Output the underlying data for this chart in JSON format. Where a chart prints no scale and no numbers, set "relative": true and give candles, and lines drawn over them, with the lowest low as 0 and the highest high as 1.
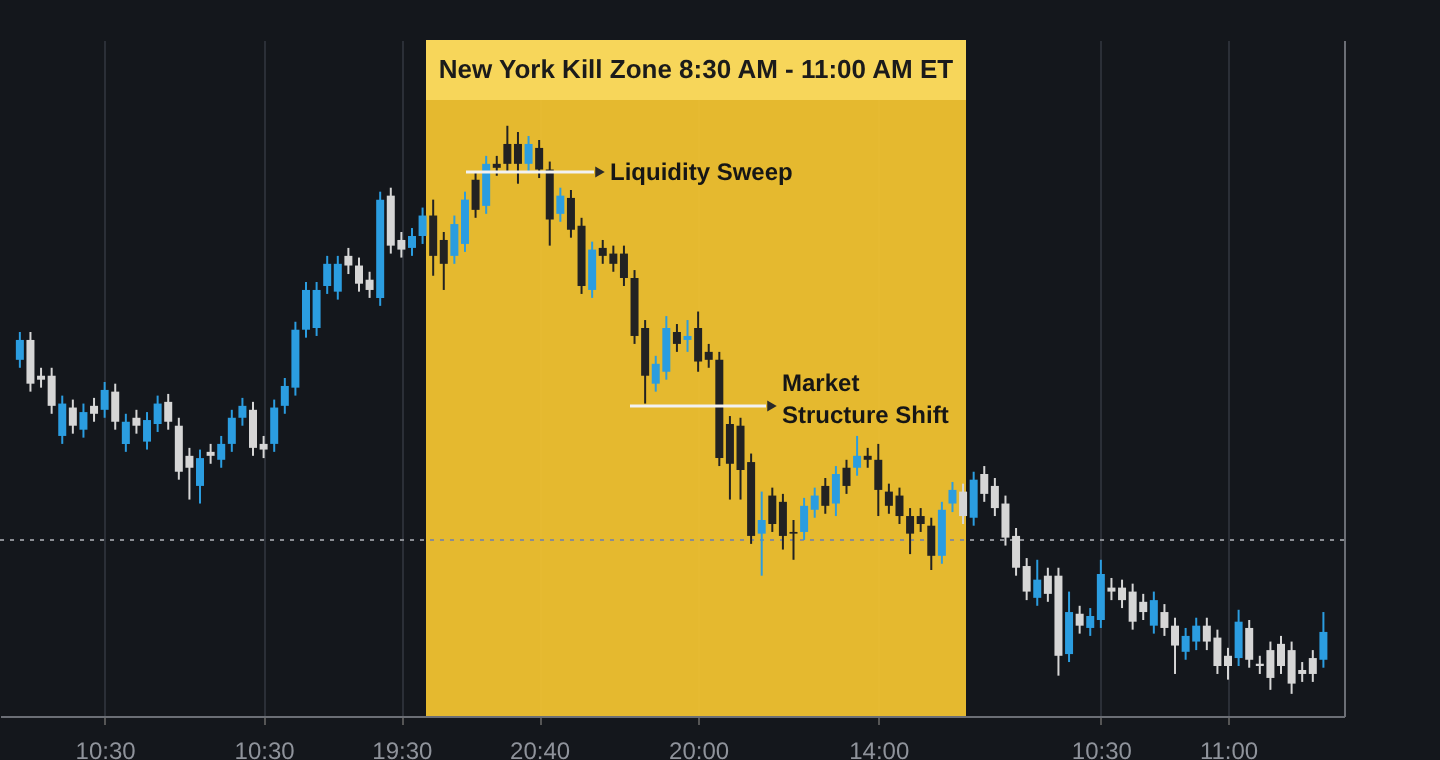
{
  "chart_data": {
    "type": "candlestick",
    "relative": true,
    "categories": [
      null,
      null,
      null,
      null,
      null,
      null,
      null,
      null,
      "10:30",
      null,
      null,
      null,
      null,
      null,
      null,
      null,
      null,
      null,
      null,
      null,
      null,
      null,
      null,
      "10:30",
      null,
      null,
      null,
      null,
      null,
      null,
      null,
      null,
      null,
      null,
      null,
      null,
      "19:30",
      null,
      null,
      null,
      null,
      null,
      null,
      null,
      null,
      null,
      null,
      null,
      null,
      "20:40",
      null,
      null,
      null,
      null,
      null,
      null,
      null,
      null,
      null,
      null,
      null,
      null,
      null,
      null,
      "20:00",
      null,
      null,
      null,
      null,
      null,
      null,
      null,
      null,
      null,
      null,
      null,
      null,
      null,
      null,
      null,
      null,
      "14:00",
      null,
      null,
      null,
      null,
      null,
      null,
      null,
      null,
      null,
      null,
      null,
      null,
      null,
      null,
      null,
      null,
      null,
      null,
      null,
      null,
      "10:30",
      null,
      null,
      null,
      null,
      null,
      null,
      null,
      null,
      null,
      null,
      null,
      "11:00",
      null,
      null,
      null,
      null,
      null,
      null,
      null,
      null,
      null
    ],
    "tick_labels": "x",
    "grid": "x",
    "ohlc": [
      [
        0.588,
        0.637,
        0.574,
        0.623
      ],
      [
        0.623,
        0.637,
        0.532,
        0.546
      ],
      [
        0.56,
        0.574,
        0.539,
        0.553
      ],
      [
        0.56,
        0.574,
        0.493,
        0.507
      ],
      [
        0.454,
        0.525,
        0.44,
        0.511
      ],
      [
        0.504,
        0.518,
        0.458,
        0.472
      ],
      [
        0.465,
        0.511,
        0.451,
        0.496
      ],
      [
        0.507,
        0.521,
        0.479,
        0.493
      ],
      [
        0.5,
        0.549,
        0.486,
        0.535
      ],
      [
        0.532,
        0.546,
        0.465,
        0.479
      ],
      [
        0.44,
        0.493,
        0.426,
        0.479
      ],
      [
        0.486,
        0.5,
        0.458,
        0.472
      ],
      [
        0.444,
        0.496,
        0.43,
        0.482
      ],
      [
        0.475,
        0.525,
        0.461,
        0.511
      ],
      [
        0.514,
        0.528,
        0.465,
        0.479
      ],
      [
        0.472,
        0.486,
        0.377,
        0.391
      ],
      [
        0.419,
        0.433,
        0.342,
        0.398
      ],
      [
        0.366,
        0.43,
        0.335,
        0.415
      ],
      [
        0.426,
        0.44,
        0.405,
        0.419
      ],
      [
        0.412,
        0.454,
        0.398,
        0.44
      ],
      [
        0.44,
        0.5,
        0.426,
        0.486
      ],
      [
        0.486,
        0.521,
        0.472,
        0.507
      ],
      [
        0.5,
        0.514,
        0.419,
        0.433
      ],
      [
        0.44,
        0.454,
        0.415,
        0.43
      ],
      [
        0.44,
        0.518,
        0.426,
        0.504
      ],
      [
        0.507,
        0.556,
        0.493,
        0.542
      ],
      [
        0.539,
        0.655,
        0.525,
        0.641
      ],
      [
        0.641,
        0.725,
        0.627,
        0.711
      ],
      [
        0.644,
        0.725,
        0.63,
        0.711
      ],
      [
        0.718,
        0.771,
        0.704,
        0.757
      ],
      [
        0.708,
        0.771,
        0.694,
        0.757
      ],
      [
        0.771,
        0.785,
        0.739,
        0.754
      ],
      [
        0.754,
        0.768,
        0.708,
        0.722
      ],
      [
        0.729,
        0.743,
        0.697,
        0.711
      ],
      [
        0.697,
        0.884,
        0.683,
        0.87
      ],
      [
        0.877,
        0.891,
        0.775,
        0.789
      ],
      [
        0.799,
        0.813,
        0.768,
        0.782
      ],
      [
        0.785,
        0.82,
        0.771,
        0.806
      ],
      [
        0.806,
        0.856,
        0.792,
        0.842
      ],
      [
        0.842,
        0.87,
        0.736,
        0.771
      ],
      [
        0.799,
        0.813,
        0.711,
        0.757
      ],
      [
        0.771,
        0.842,
        0.757,
        0.827
      ],
      [
        0.792,
        0.884,
        0.778,
        0.87
      ],
      [
        0.905,
        0.919,
        0.838,
        0.852
      ],
      [
        0.859,
        0.947,
        0.845,
        0.933
      ],
      [
        0.933,
        0.947,
        0.912,
        0.926
      ],
      [
        0.968,
        1,
        0.919,
        0.933
      ],
      [
        0.968,
        0.989,
        0.898,
        0.933
      ],
      [
        0.933,
        0.982,
        0.919,
        0.968
      ],
      [
        0.961,
        0.975,
        0.908,
        0.923
      ],
      [
        0.923,
        0.937,
        0.789,
        0.835
      ],
      [
        0.845,
        0.891,
        0.831,
        0.877
      ],
      [
        0.873,
        0.887,
        0.803,
        0.817
      ],
      [
        0.824,
        0.838,
        0.704,
        0.718
      ],
      [
        0.711,
        0.796,
        0.697,
        0.782
      ],
      [
        0.785,
        0.799,
        0.757,
        0.771
      ],
      [
        0.775,
        0.789,
        0.743,
        0.757
      ],
      [
        0.775,
        0.789,
        0.718,
        0.732
      ],
      [
        0.732,
        0.746,
        0.616,
        0.63
      ],
      [
        0.644,
        0.658,
        0.511,
        0.56
      ],
      [
        0.546,
        0.595,
        0.532,
        0.581
      ],
      [
        0.567,
        0.665,
        0.553,
        0.644
      ],
      [
        0.637,
        0.651,
        0.602,
        0.616
      ],
      [
        0.623,
        0.658,
        0.602,
        0.63
      ],
      [
        0.644,
        0.673,
        0.567,
        0.585
      ],
      [
        0.602,
        0.616,
        0.574,
        0.588
      ],
      [
        0.588,
        0.602,
        0.401,
        0.415
      ],
      [
        0.475,
        0.489,
        0.342,
        0.405
      ],
      [
        0.472,
        0.486,
        0.342,
        0.394
      ],
      [
        0.408,
        0.423,
        0.264,
        0.278
      ],
      [
        0.282,
        0.356,
        0.208,
        0.306
      ],
      [
        0.349,
        0.363,
        0.285,
        0.299
      ],
      [
        0.338,
        0.352,
        0.254,
        0.278
      ],
      [
        0.285,
        0.306,
        0.236,
        0.282
      ],
      [
        0.285,
        0.345,
        0.271,
        0.331
      ],
      [
        0.324,
        0.363,
        0.31,
        0.349
      ],
      [
        0.366,
        0.38,
        0.317,
        0.331
      ],
      [
        0.335,
        0.401,
        0.313,
        0.387
      ],
      [
        0.398,
        0.412,
        0.352,
        0.366
      ],
      [
        0.398,
        0.454,
        0.384,
        0.419
      ],
      [
        0.419,
        0.433,
        0.398,
        0.412
      ],
      [
        0.412,
        0.44,
        0.313,
        0.359
      ],
      [
        0.356,
        0.37,
        0.317,
        0.331
      ],
      [
        0.349,
        0.363,
        0.299,
        0.313
      ],
      [
        0.313,
        0.327,
        0.246,
        0.282
      ],
      [
        0.313,
        0.327,
        0.285,
        0.299
      ],
      [
        0.296,
        0.31,
        0.218,
        0.243
      ],
      [
        0.243,
        0.338,
        0.229,
        0.324
      ],
      [
        0.335,
        0.373,
        0.32,
        0.359
      ],
      [
        0.356,
        0.37,
        0.299,
        0.313
      ],
      [
        0.31,
        0.391,
        0.296,
        0.377
      ],
      [
        0.387,
        0.401,
        0.338,
        0.352
      ],
      [
        0.366,
        0.38,
        0.313,
        0.327
      ],
      [
        0.335,
        0.349,
        0.261,
        0.275
      ],
      [
        0.278,
        0.292,
        0.208,
        0.222
      ],
      [
        0.225,
        0.239,
        0.165,
        0.18
      ],
      [
        0.169,
        0.236,
        0.155,
        0.201
      ],
      [
        0.208,
        0.222,
        0.162,
        0.176
      ],
      [
        0.208,
        0.222,
        0.032,
        0.067
      ],
      [
        0.07,
        0.18,
        0.056,
        0.144
      ],
      [
        0.141,
        0.155,
        0.106,
        0.12
      ],
      [
        0.116,
        0.151,
        0.102,
        0.137
      ],
      [
        0.13,
        0.236,
        0.116,
        0.211
      ],
      [
        0.187,
        0.204,
        0.165,
        0.18
      ],
      [
        0.187,
        0.201,
        0.151,
        0.165
      ],
      [
        0.18,
        0.194,
        0.113,
        0.127
      ],
      [
        0.162,
        0.176,
        0.13,
        0.144
      ],
      [
        0.12,
        0.18,
        0.106,
        0.165
      ],
      [
        0.144,
        0.158,
        0.102,
        0.116
      ],
      [
        0.12,
        0.134,
        0.035,
        0.085
      ],
      [
        0.074,
        0.116,
        0.06,
        0.102
      ],
      [
        0.092,
        0.134,
        0.077,
        0.12
      ],
      [
        0.12,
        0.134,
        0.077,
        0.092
      ],
      [
        0.099,
        0.113,
        0.035,
        0.049
      ],
      [
        0.067,
        0.081,
        0.025,
        0.049
      ],
      [
        0.063,
        0.148,
        0.049,
        0.127
      ],
      [
        0.116,
        0.13,
        0.046,
        0.06
      ],
      [
        0.053,
        0.067,
        0.035,
        0.049
      ],
      [
        0.077,
        0.092,
        0.007,
        0.028
      ],
      [
        0.088,
        0.102,
        0.035,
        0.049
      ],
      [
        0.077,
        0.092,
        0,
        0.018
      ],
      [
        0.042,
        0.056,
        0.021,
        0.035
      ],
      [
        0.063,
        0.077,
        0.021,
        0.035
      ],
      [
        0.06,
        0.144,
        0.046,
        0.109
      ]
    ],
    "colors": [
      "#2b9de0",
      "#d6d6d6",
      "#d6d6d6",
      "#d6d6d6",
      "#2b9de0",
      "#d6d6d6",
      "#2b9de0",
      "#d6d6d6",
      "#2b9de0",
      "#d6d6d6",
      "#2b9de0",
      "#d6d6d6",
      "#2b9de0",
      "#2b9de0",
      "#d6d6d6",
      "#d6d6d6",
      "#d6d6d6",
      "#2b9de0",
      "#d6d6d6",
      "#2b9de0",
      "#2b9de0",
      "#2b9de0",
      "#d6d6d6",
      "#d6d6d6",
      "#2b9de0",
      "#2b9de0",
      "#2b9de0",
      "#2b9de0",
      "#2b9de0",
      "#2b9de0",
      "#2b9de0",
      "#d6d6d6",
      "#d6d6d6",
      "#d6d6d6",
      "#2b9de0",
      "#d6d6d6",
      "#d6d6d6",
      "#2b9de0",
      "#2b9de0",
      "#222222",
      "#222222",
      "#2b9de0",
      "#2b9de0",
      "#222222",
      "#2b9de0",
      "#222222",
      "#222222",
      "#222222",
      "#2b9de0",
      "#222222",
      "#222222",
      "#2b9de0",
      "#222222",
      "#222222",
      "#2b9de0",
      "#222222",
      "#222222",
      "#222222",
      "#222222",
      "#222222",
      "#2b9de0",
      "#2b9de0",
      "#222222",
      "#2b9de0",
      "#222222",
      "#222222",
      "#222222",
      "#222222",
      "#222222",
      "#222222",
      "#2b9de0",
      "#222222",
      "#222222",
      "#222222",
      "#2b9de0",
      "#2b9de0",
      "#222222",
      "#2b9de0",
      "#222222",
      "#2b9de0",
      "#222222",
      "#222222",
      "#222222",
      "#222222",
      "#222222",
      "#222222",
      "#222222",
      "#2b9de0",
      "#2b9de0",
      "#d6d6d6",
      "#2b9de0",
      "#d6d6d6",
      "#d6d6d6",
      "#d6d6d6",
      "#d6d6d6",
      "#d6d6d6",
      "#2b9de0",
      "#d6d6d6",
      "#d6d6d6",
      "#2b9de0",
      "#d6d6d6",
      "#2b9de0",
      "#2b9de0",
      "#d6d6d6",
      "#d6d6d6",
      "#d6d6d6",
      "#d6d6d6",
      "#2b9de0",
      "#d6d6d6",
      "#d6d6d6",
      "#2b9de0",
      "#2b9de0",
      "#d6d6d6",
      "#d6d6d6",
      "#d6d6d6",
      "#2b9de0",
      "#d6d6d6",
      "#d6d6d6",
      "#d6d6d6",
      "#d6d6d6",
      "#d6d6d6",
      "#d6d6d6",
      "#d6d6d6",
      "#2b9de0"
    ],
    "ref_lines": [
      {
        "axis": "y",
        "value": 0.271,
        "line_style": "dotted",
        "color": "#8a8d93"
      }
    ],
    "annotations": [
      "New York Kill Zone  8:30 AM - 11:00 AM ET",
      "Liquidity Sweep",
      "Market\nStructure Shift"
    ]
  }
}
